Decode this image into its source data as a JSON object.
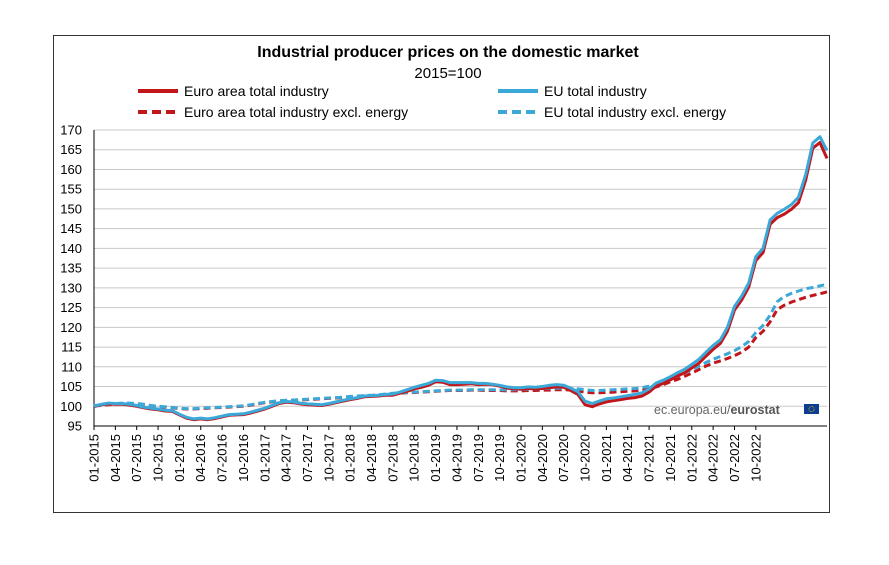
{
  "chart_data": {
    "type": "line",
    "title": "Industrial producer prices on the domestic market",
    "subtitle": "2015=100",
    "source": "ec.europa.eu/",
    "source_brand": "eurostat",
    "x_tick_labels": [
      "01-2015",
      "04-2015",
      "07-2015",
      "10-2015",
      "01-2016",
      "04-2016",
      "07-2016",
      "10-2016",
      "01-2017",
      "04-2017",
      "07-2017",
      "10-2017",
      "01-2018",
      "04-2018",
      "07-2018",
      "10-2018",
      "01-2019",
      "04-2019",
      "07-2019",
      "10-2019",
      "01-2020",
      "04-2020",
      "07-2020",
      "10-2020",
      "01-2021",
      "04-2021",
      "07-2021",
      "10-2021",
      "01-2022",
      "04-2022",
      "07-2022",
      "10-2022"
    ],
    "y_ticks": [
      95,
      100,
      105,
      110,
      115,
      120,
      125,
      130,
      135,
      140,
      145,
      150,
      155,
      160,
      165,
      170
    ],
    "ylim": [
      95,
      170
    ],
    "grid": true,
    "legend_placement": "top",
    "series": [
      {
        "name": "Euro area total industry",
        "color": "#c0161c",
        "dash": false,
        "values": [
          99.9,
          100.4,
          100.6,
          100.5,
          100.5,
          100.3,
          100.0,
          99.6,
          99.3,
          99.1,
          98.8,
          98.7,
          97.8,
          97.0,
          96.6,
          96.8,
          96.6,
          96.9,
          97.3,
          97.7,
          97.8,
          97.9,
          98.3,
          98.8,
          99.3,
          100.0,
          100.7,
          101.0,
          100.9,
          100.6,
          100.4,
          100.3,
          100.2,
          100.5,
          100.9,
          101.3,
          101.7,
          102.0,
          102.4,
          102.5,
          102.6,
          102.8,
          102.8,
          103.3,
          103.8,
          104.4,
          104.8,
          105.3,
          106.2,
          106.1,
          105.5,
          105.5,
          105.6,
          105.7,
          105.5,
          105.6,
          105.5,
          105.1,
          104.6,
          104.4,
          104.3,
          104.5,
          104.4,
          104.5,
          104.7,
          104.9,
          104.8,
          104.0,
          103.0,
          100.4,
          99.9,
          100.6,
          101.1,
          101.4,
          101.7,
          102.0,
          102.2,
          102.6,
          103.6,
          105.1,
          105.8,
          106.7,
          107.7,
          108.5,
          109.7,
          110.9,
          112.7,
          114.4,
          115.9,
          119.0,
          124.4,
          126.9,
          130.2,
          136.9,
          138.9,
          146.1,
          147.8,
          148.7,
          149.9,
          151.6,
          157.3,
          165.4,
          166.8,
          162.8
        ]
      },
      {
        "name": "EU total industry",
        "color": "#3ba8d8",
        "dash": false,
        "values": [
          100.0,
          100.5,
          100.8,
          100.7,
          100.7,
          100.5,
          100.2,
          99.8,
          99.5,
          99.3,
          99.0,
          98.9,
          98.0,
          97.2,
          96.8,
          97.0,
          96.8,
          97.1,
          97.5,
          97.9,
          98.0,
          98.1,
          98.5,
          99.0,
          99.5,
          100.2,
          100.9,
          101.2,
          101.1,
          100.8,
          100.6,
          100.5,
          100.4,
          100.7,
          101.1,
          101.5,
          101.9,
          102.2,
          102.6,
          102.7,
          102.8,
          103.0,
          103.1,
          103.6,
          104.2,
          104.8,
          105.3,
          105.8,
          106.6,
          106.5,
          106.0,
          106.0,
          106.0,
          106.0,
          105.8,
          105.8,
          105.6,
          105.3,
          104.9,
          104.7,
          104.7,
          104.9,
          104.8,
          105.0,
          105.3,
          105.5,
          105.3,
          104.6,
          103.7,
          101.3,
          100.7,
          101.3,
          101.9,
          102.1,
          102.4,
          102.7,
          103.0,
          103.4,
          104.4,
          105.9,
          106.6,
          107.5,
          108.5,
          109.4,
          110.6,
          111.9,
          113.7,
          115.4,
          116.8,
          120.0,
          125.3,
          127.9,
          131.2,
          137.9,
          140.0,
          147.2,
          148.9,
          149.9,
          151.1,
          153.0,
          158.7,
          166.7,
          168.3,
          164.8
        ]
      },
      {
        "name": "Euro area total industry excl. energy",
        "color": "#c0161c",
        "dash": true,
        "values": [
          100.1,
          100.2,
          100.4,
          100.6,
          100.7,
          100.7,
          100.6,
          100.4,
          100.1,
          99.9,
          99.8,
          99.6,
          99.4,
          99.3,
          99.3,
          99.4,
          99.5,
          99.6,
          99.7,
          99.8,
          99.9,
          100.0,
          100.3,
          100.6,
          100.9,
          101.1,
          101.3,
          101.4,
          101.5,
          101.6,
          101.7,
          101.8,
          101.9,
          102.0,
          102.1,
          102.2,
          102.4,
          102.5,
          102.6,
          102.7,
          102.8,
          103.0,
          103.2,
          103.3,
          103.4,
          103.5,
          103.6,
          103.7,
          103.8,
          103.9,
          104.0,
          104.0,
          104.0,
          104.1,
          104.1,
          104.0,
          104.0,
          104.0,
          103.9,
          103.9,
          103.9,
          104.0,
          104.0,
          104.1,
          104.1,
          104.2,
          104.2,
          104.1,
          103.9,
          103.6,
          103.4,
          103.4,
          103.5,
          103.6,
          103.7,
          103.8,
          103.9,
          104.1,
          104.4,
          104.9,
          105.5,
          106.2,
          106.8,
          107.6,
          108.4,
          109.3,
          110.2,
          110.9,
          111.5,
          112.1,
          112.8,
          113.7,
          115.0,
          117.4,
          119.0,
          121.4,
          124.5,
          125.6,
          126.4,
          127.0,
          127.6,
          128.1,
          128.5,
          129.0
        ]
      },
      {
        "name": "EU total industry excl. energy",
        "color": "#3ba8d8",
        "dash": true,
        "values": [
          100.2,
          100.3,
          100.5,
          100.7,
          100.8,
          100.8,
          100.7,
          100.5,
          100.2,
          100.0,
          99.9,
          99.7,
          99.5,
          99.4,
          99.4,
          99.5,
          99.6,
          99.7,
          99.8,
          99.9,
          100.0,
          100.1,
          100.4,
          100.7,
          101.0,
          101.2,
          101.4,
          101.5,
          101.6,
          101.7,
          101.8,
          101.9,
          102.0,
          102.1,
          102.2,
          102.3,
          102.5,
          102.6,
          102.7,
          102.8,
          102.9,
          103.1,
          103.3,
          103.4,
          103.5,
          103.6,
          103.7,
          103.8,
          103.9,
          104.0,
          104.1,
          104.1,
          104.1,
          104.2,
          104.2,
          104.2,
          104.2,
          104.2,
          104.2,
          104.2,
          104.3,
          104.3,
          104.4,
          104.5,
          104.5,
          104.6,
          104.6,
          104.5,
          104.4,
          104.2,
          104.0,
          104.0,
          104.1,
          104.2,
          104.3,
          104.4,
          104.5,
          104.7,
          105.1,
          105.6,
          106.3,
          107.0,
          107.7,
          108.5,
          109.3,
          110.2,
          111.1,
          111.9,
          112.6,
          113.3,
          114.1,
          115.1,
          116.4,
          118.7,
          120.5,
          123.1,
          126.5,
          127.8,
          128.6,
          129.2,
          129.8,
          130.1,
          130.5,
          130.9
        ]
      }
    ]
  }
}
